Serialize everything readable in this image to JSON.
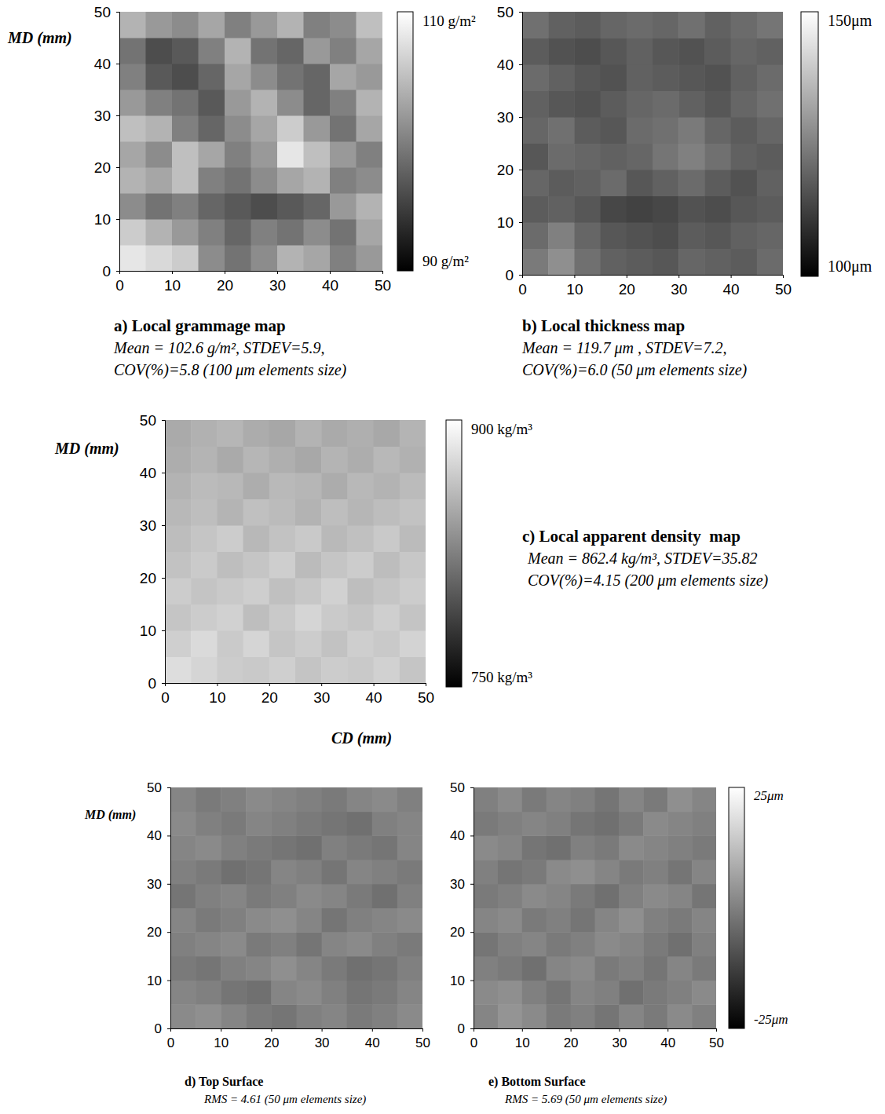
{
  "chart_data": [
    {
      "type": "heatmap",
      "title": "a) Local grammage map",
      "subtitle": [
        "Mean = 102.6 g/m², STDEV=5.9,",
        "COV(%)=5.8 (100 μm elements size)"
      ],
      "y_label": "MD (mm)",
      "xlim": [
        0,
        50
      ],
      "ylim": [
        0,
        50
      ],
      "xticks": [
        0,
        10,
        20,
        30,
        40,
        50
      ],
      "yticks": [
        0,
        10,
        20,
        30,
        40,
        50
      ],
      "x": [
        2.5,
        7.5,
        12.5,
        17.5,
        22.5,
        27.5,
        32.5,
        37.5,
        42.5,
        47.5
      ],
      "y": [
        2.5,
        7.5,
        12.5,
        17.5,
        22.5,
        27.5,
        32.5,
        37.5,
        42.5,
        47.5
      ],
      "z": [
        [
          108,
          107,
          106,
          101,
          99,
          101,
          104,
          103,
          100,
          102
        ],
        [
          106,
          104,
          102,
          100,
          98,
          100,
          99,
          101,
          99,
          103
        ],
        [
          101,
          99,
          100,
          98,
          97,
          96,
          97,
          98,
          102,
          104
        ],
        [
          104,
          103,
          105,
          100,
          99,
          101,
          103,
          104,
          100,
          101
        ],
        [
          103,
          101,
          105,
          103,
          100,
          102,
          108,
          105,
          102,
          100
        ],
        [
          105,
          104,
          100,
          98,
          101,
          103,
          106,
          102,
          99,
          103
        ],
        [
          102,
          100,
          99,
          97,
          102,
          104,
          101,
          98,
          100,
          104
        ],
        [
          100,
          97,
          96,
          98,
          103,
          101,
          99,
          98,
          103,
          102
        ],
        [
          99,
          96,
          97,
          100,
          104,
          99,
          98,
          102,
          100,
          103
        ],
        [
          104,
          102,
          101,
          103,
          100,
          102,
          104,
          100,
          101,
          105
        ]
      ],
      "zlim": [
        90,
        110
      ],
      "colorbar_ticks": [
        {
          "value": 110,
          "label": "110 g/m²"
        },
        {
          "value": 90,
          "label": "90 g/m²"
        }
      ]
    },
    {
      "type": "heatmap",
      "title": "b) Local thickness map",
      "subtitle": [
        "Mean = 119.7 μm , STDEV=7.2,",
        "COV(%)=6.0 (50 μm elements size)"
      ],
      "xlim": [
        0,
        50
      ],
      "ylim": [
        0,
        50
      ],
      "xticks": [
        0,
        10,
        20,
        30,
        40,
        50
      ],
      "yticks": [
        0,
        10,
        20,
        30,
        40,
        50
      ],
      "x": [
        2.5,
        7.5,
        12.5,
        17.5,
        22.5,
        27.5,
        32.5,
        37.5,
        42.5,
        47.5
      ],
      "y": [
        2.5,
        7.5,
        12.5,
        17.5,
        22.5,
        27.5,
        32.5,
        37.5,
        42.5,
        47.5
      ],
      "z": [
        [
          124,
          128,
          122,
          119,
          118,
          117,
          120,
          119,
          118,
          121
        ],
        [
          121,
          125,
          120,
          117,
          116,
          115,
          118,
          117,
          119,
          120
        ],
        [
          118,
          119,
          117,
          114,
          113,
          114,
          116,
          115,
          117,
          118
        ],
        [
          120,
          118,
          119,
          121,
          117,
          119,
          121,
          118,
          116,
          119
        ],
        [
          117,
          121,
          120,
          119,
          120,
          123,
          125,
          122,
          119,
          118
        ],
        [
          120,
          122,
          118,
          117,
          121,
          122,
          124,
          120,
          118,
          120
        ],
        [
          119,
          117,
          116,
          118,
          120,
          121,
          119,
          117,
          120,
          122
        ],
        [
          121,
          119,
          117,
          116,
          119,
          118,
          117,
          116,
          119,
          121
        ],
        [
          118,
          116,
          115,
          117,
          119,
          117,
          116,
          118,
          120,
          119
        ],
        [
          122,
          119,
          118,
          120,
          121,
          120,
          122,
          119,
          121,
          123
        ]
      ],
      "zlim": [
        100,
        150
      ],
      "colorbar_ticks": [
        {
          "value": 150,
          "label": "150μm"
        },
        {
          "value": 100,
          "label": "100μm"
        }
      ]
    },
    {
      "type": "heatmap",
      "title": "c) Local apparent density  map",
      "subtitle": [
        "Mean = 862.4 kg/m³, STDEV=35.82",
        "COV(%)=4.15 (200 μm elements size)"
      ],
      "y_label": "MD (mm)",
      "x_label": "CD (mm)",
      "xlim": [
        0,
        50
      ],
      "ylim": [
        0,
        50
      ],
      "xticks": [
        0,
        10,
        20,
        30,
        40,
        50
      ],
      "yticks": [
        0,
        10,
        20,
        30,
        40,
        50
      ],
      "x": [
        2.5,
        7.5,
        12.5,
        17.5,
        22.5,
        27.5,
        32.5,
        37.5,
        42.5,
        47.5
      ],
      "y": [
        2.5,
        7.5,
        12.5,
        17.5,
        22.5,
        27.5,
        32.5,
        37.5,
        42.5,
        47.5
      ],
      "z": [
        [
          880,
          875,
          870,
          868,
          872,
          865,
          870,
          868,
          873,
          866
        ],
        [
          872,
          878,
          869,
          875,
          866,
          870,
          864,
          871,
          868,
          874
        ],
        [
          866,
          870,
          873,
          862,
          868,
          875,
          869,
          866,
          872,
          865
        ],
        [
          870,
          865,
          868,
          871,
          863,
          867,
          873,
          862,
          866,
          870
        ],
        [
          864,
          869,
          862,
          866,
          871,
          860,
          866,
          870,
          861,
          867
        ],
        [
          861,
          866,
          870,
          858,
          864,
          868,
          859,
          863,
          868,
          860
        ],
        [
          858,
          862,
          856,
          863,
          860,
          855,
          862,
          857,
          861,
          864
        ],
        [
          855,
          860,
          858,
          852,
          859,
          857,
          851,
          858,
          855,
          860
        ],
        [
          852,
          856,
          850,
          857,
          853,
          849,
          856,
          852,
          858,
          854
        ],
        [
          850,
          854,
          857,
          851,
          848,
          855,
          850,
          853,
          849,
          856
        ]
      ],
      "zlim": [
        750,
        900
      ],
      "colorbar_ticks": [
        {
          "value": 900,
          "label": "900 kg/m³"
        },
        {
          "value": 750,
          "label": "750 kg/m³"
        }
      ]
    },
    {
      "type": "heatmap",
      "title": "d) Top Surface",
      "subtitle": [
        "RMS = 4.61 (50 μm elements size)"
      ],
      "y_label": "MD (mm)",
      "xlim": [
        0,
        50
      ],
      "ylim": [
        0,
        50
      ],
      "xticks": [
        0,
        10,
        20,
        30,
        40,
        50
      ],
      "yticks": [
        0,
        10,
        20,
        30,
        40,
        50
      ],
      "x": [
        2.5,
        7.5,
        12.5,
        17.5,
        22.5,
        27.5,
        32.5,
        37.5,
        42.5,
        47.5
      ],
      "y": [
        2.5,
        7.5,
        12.5,
        17.5,
        22.5,
        27.5,
        32.5,
        37.5,
        42.5,
        47.5
      ],
      "z": [
        [
          2,
          3,
          1,
          -1,
          -2,
          0,
          1,
          -1,
          0,
          2
        ],
        [
          1,
          0,
          -2,
          -3,
          1,
          2,
          0,
          -2,
          -1,
          1
        ],
        [
          -1,
          -2,
          0,
          1,
          3,
          1,
          -1,
          -3,
          -2,
          0
        ],
        [
          0,
          1,
          2,
          -1,
          0,
          -2,
          1,
          2,
          0,
          -1
        ],
        [
          1,
          -1,
          0,
          2,
          3,
          1,
          -2,
          0,
          1,
          2
        ],
        [
          -2,
          0,
          1,
          -1,
          0,
          2,
          1,
          -1,
          -3,
          0
        ],
        [
          0,
          -1,
          -3,
          -2,
          1,
          0,
          -2,
          1,
          0,
          -1
        ],
        [
          1,
          2,
          0,
          -1,
          -2,
          -3,
          0,
          -1,
          -2,
          1
        ],
        [
          2,
          0,
          -1,
          1,
          0,
          -1,
          -2,
          -3,
          0,
          1
        ],
        [
          1,
          -1,
          0,
          2,
          1,
          0,
          -1,
          1,
          2,
          0
        ]
      ],
      "zlim": [
        -25,
        25
      ]
    },
    {
      "type": "heatmap",
      "title": "e) Bottom Surface",
      "subtitle": [
        "RMS = 5.69 (50 μm elements size)"
      ],
      "xlim": [
        0,
        50
      ],
      "ylim": [
        0,
        50
      ],
      "xticks": [
        0,
        10,
        20,
        30,
        40,
        50
      ],
      "yticks": [
        0,
        10,
        20,
        30,
        40,
        50
      ],
      "x": [
        2.5,
        7.5,
        12.5,
        17.5,
        22.5,
        27.5,
        32.5,
        37.5,
        42.5,
        47.5
      ],
      "y": [
        2.5,
        7.5,
        12.5,
        17.5,
        22.5,
        27.5,
        32.5,
        37.5,
        42.5,
        47.5
      ],
      "z": [
        [
          1,
          4,
          2,
          -1,
          0,
          -2,
          1,
          -1,
          2,
          0
        ],
        [
          2,
          3,
          0,
          -2,
          1,
          0,
          -3,
          -1,
          0,
          2
        ],
        [
          0,
          -1,
          -3,
          1,
          2,
          -1,
          0,
          -2,
          1,
          -1
        ],
        [
          -2,
          0,
          1,
          -1,
          0,
          2,
          1,
          -1,
          -3,
          0
        ],
        [
          1,
          2,
          -1,
          0,
          -2,
          1,
          3,
          0,
          -1,
          1
        ],
        [
          -1,
          0,
          2,
          1,
          -1,
          -3,
          0,
          2,
          1,
          -2
        ],
        [
          0,
          -2,
          -1,
          2,
          3,
          1,
          -1,
          0,
          -2,
          1
        ],
        [
          2,
          1,
          -2,
          -3,
          0,
          -1,
          2,
          1,
          0,
          -1
        ],
        [
          -1,
          0,
          1,
          0,
          -2,
          -3,
          -1,
          2,
          1,
          0
        ],
        [
          0,
          2,
          -1,
          1,
          0,
          -2,
          1,
          -1,
          3,
          1
        ]
      ],
      "zlim": [
        -25,
        25
      ],
      "colorbar_ticks": [
        {
          "value": 25,
          "label": "25μm"
        },
        {
          "value": -25,
          "label": "-25μm"
        }
      ]
    }
  ]
}
